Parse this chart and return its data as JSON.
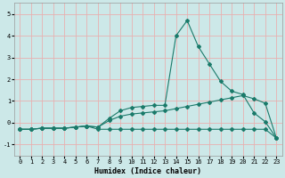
{
  "xlabel": "Humidex (Indice chaleur)",
  "x": [
    0,
    1,
    2,
    3,
    4,
    5,
    6,
    7,
    8,
    9,
    10,
    11,
    12,
    13,
    14,
    15,
    16,
    17,
    18,
    19,
    20,
    21,
    22,
    23
  ],
  "line1": [
    -0.3,
    -0.3,
    -0.25,
    -0.25,
    -0.25,
    -0.2,
    -0.15,
    -0.2,
    0.2,
    0.55,
    0.7,
    0.75,
    0.8,
    0.8,
    4.0,
    4.7,
    3.5,
    2.7,
    1.9,
    1.45,
    1.3,
    0.45,
    0.05,
    -0.7
  ],
  "line2": [
    -0.3,
    -0.3,
    -0.25,
    -0.25,
    -0.25,
    -0.2,
    -0.15,
    -0.2,
    0.1,
    0.3,
    0.4,
    0.45,
    0.5,
    0.55,
    0.65,
    0.75,
    0.85,
    0.95,
    1.05,
    1.15,
    1.25,
    1.1,
    0.9,
    -0.7
  ],
  "line3": [
    -0.3,
    -0.3,
    -0.25,
    -0.25,
    -0.25,
    -0.2,
    -0.15,
    -0.3,
    -0.3,
    -0.3,
    -0.3,
    -0.3,
    -0.3,
    -0.3,
    -0.3,
    -0.3,
    -0.3,
    -0.3,
    -0.3,
    -0.3,
    -0.3,
    -0.3,
    -0.3,
    -0.7
  ],
  "line_color": "#1a7a6a",
  "bg_color": "#cce8e8",
  "grid_color_v": "#e8b0b0",
  "grid_color_h": "#e8b0b0",
  "ylim": [
    -1.5,
    5.5
  ],
  "xlim": [
    -0.5,
    23.5
  ],
  "yticks": [
    -1,
    0,
    1,
    2,
    3,
    4,
    5
  ],
  "marker": "D",
  "markersize": 2.0,
  "linewidth": 0.8,
  "tick_fontsize": 5.0,
  "xlabel_fontsize": 6.0
}
